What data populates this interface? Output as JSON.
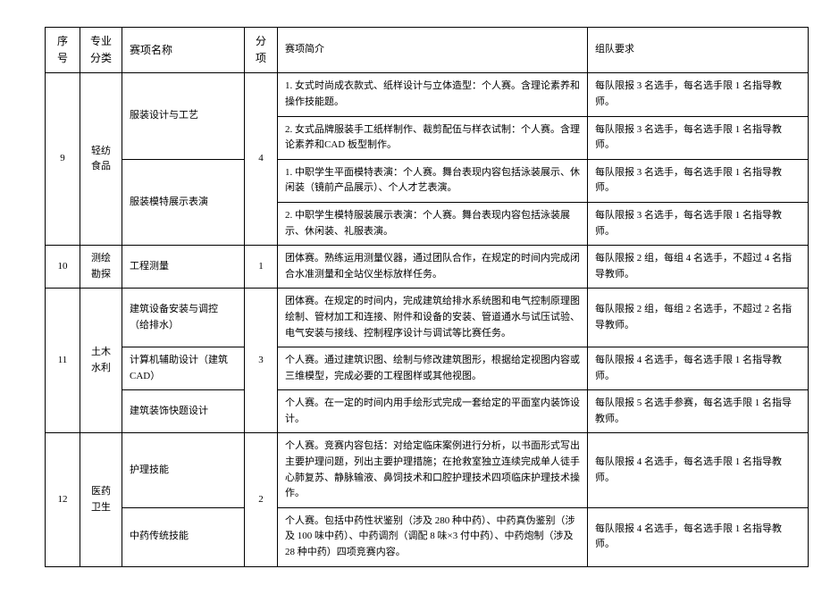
{
  "headers": {
    "num": "序号",
    "cat": "专业分类",
    "name": "赛项名称",
    "sub": "分项",
    "desc": "赛项简介",
    "req": "组队要求"
  },
  "rows": [
    {
      "num": "9",
      "cat": "轻纺食品",
      "sub": "4",
      "items": [
        {
          "name": "服装设计与工艺",
          "name_rowspan": 2,
          "desc": "1. 女式时尚成衣款式、纸样设计与立体造型：个人赛。含理论素养和操作技能题。",
          "req": "每队限报 3 名选手，每名选手限 1 名指导教师。"
        },
        {
          "desc": "2. 女式品牌服装手工纸样制作、裁剪配伍与样衣试制：个人赛。含理论素养和CAD 板型制作。",
          "req": "每队限报 3 名选手，每名选手限 1 名指导教师。"
        },
        {
          "name": "服装模特展示表演",
          "name_rowspan": 2,
          "desc": "1. 中职学生平面模特表演：个人赛。舞台表现内容包括泳装展示、休闲装（镜前产品展示）、个人才艺表演。",
          "req": "每队限报 3 名选手，每名选手限 1 名指导教师。"
        },
        {
          "desc": "2. 中职学生模特服装展示表演：个人赛。舞台表现内容包括泳装展示、休闲装、礼服表演。",
          "req": "每队限报 3 名选手，每名选手限 1 名指导教师。"
        }
      ]
    },
    {
      "num": "10",
      "cat": "测绘勘探",
      "sub": "1",
      "items": [
        {
          "name": "工程测量",
          "name_rowspan": 1,
          "desc": "团体赛。熟练运用测量仪器，通过团队合作，在规定的时间内完成闭合水准测量和全站仪坐标放样任务。",
          "req": "每队限报 2 组，每组 4 名选手，不超过 4 名指导教师。"
        }
      ]
    },
    {
      "num": "11",
      "cat": "土木水利",
      "sub": "3",
      "items": [
        {
          "name": "建筑设备安装与调控（给排水）",
          "name_rowspan": 1,
          "desc": "团体赛。在规定的时间内，完成建筑给排水系统图和电气控制原理图绘制、管材加工和连接、附件和设备的安装、管道通水与试压试验、电气安装与接线、控制程序设计与调试等比赛任务。",
          "req": "每队限报 2 组，每组 2 名选手，不超过 2 名指导教师。"
        },
        {
          "name": "计算机辅助设计（建筑CAD）",
          "name_rowspan": 1,
          "desc": "个人赛。通过建筑识图、绘制与修改建筑图形，根据给定视图内容或三维模型，完成必要的工程图样或其他视图。",
          "req": "每队限报 4 名选手，每名选手限 1 名指导教师。"
        },
        {
          "name": "建筑装饰快题设计",
          "name_rowspan": 1,
          "desc": "个人赛。在一定的时间内用手绘形式完成一套给定的平面室内装饰设计。",
          "req": "每队限报 5 名选手参赛，每名选手限 1 名指导教师。"
        }
      ]
    },
    {
      "num": "12",
      "cat": "医药卫生",
      "sub": "2",
      "items": [
        {
          "name": "护理技能",
          "name_rowspan": 1,
          "desc": "个人赛。竞赛内容包括：对给定临床案例进行分析，以书面形式写出主要护理问题，列出主要护理措施；在抢救室独立连续完成单人徒手心肺复苏、静脉输液、鼻饲技术和口腔护理技术四项临床护理技术操作。",
          "req": "每队限报 4 名选手，每名选手限 1 名指导教师。"
        },
        {
          "name": "中药传统技能",
          "name_rowspan": 1,
          "desc": "个人赛。包括中药性状鉴别（涉及 280 种中药）、中药真伪鉴别（涉及 100 味中药）、中药调剂（调配 8 味×3 付中药）、中药炮制（涉及 28 种中药）四项竞赛内容。",
          "req": "每队限报 4 名选手，每名选手限 1 名指导教师。"
        }
      ]
    }
  ]
}
